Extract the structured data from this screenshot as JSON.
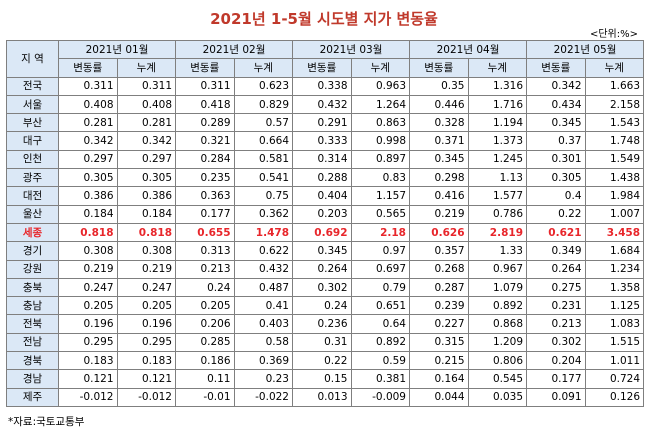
{
  "title": "2021년 1-5월 시도별 지가 변동율",
  "unit": "<단위:%>",
  "source": "*자료:국토교통부",
  "header": {
    "region_label": "지 역",
    "months": [
      "2021년 01월",
      "2021년 02월",
      "2021년 03월",
      "2021년 04월",
      "2021년 05월"
    ],
    "sub_labels": [
      "변동률",
      "누계"
    ]
  },
  "highlight_color": "#e8262b",
  "rows": [
    {
      "region": "전국",
      "values": [
        "0.311",
        "0.311",
        "0.311",
        "0.623",
        "0.338",
        "0.963",
        "0.35",
        "1.316",
        "0.342",
        "1.663"
      ]
    },
    {
      "region": "서울",
      "values": [
        "0.408",
        "0.408",
        "0.418",
        "0.829",
        "0.432",
        "1.264",
        "0.446",
        "1.716",
        "0.434",
        "2.158"
      ]
    },
    {
      "region": "부산",
      "values": [
        "0.281",
        "0.281",
        "0.289",
        "0.57",
        "0.291",
        "0.863",
        "0.328",
        "1.194",
        "0.345",
        "1.543"
      ]
    },
    {
      "region": "대구",
      "values": [
        "0.342",
        "0.342",
        "0.321",
        "0.664",
        "0.333",
        "0.998",
        "0.371",
        "1.373",
        "0.37",
        "1.748"
      ]
    },
    {
      "region": "인천",
      "values": [
        "0.297",
        "0.297",
        "0.284",
        "0.581",
        "0.314",
        "0.897",
        "0.345",
        "1.245",
        "0.301",
        "1.549"
      ]
    },
    {
      "region": "광주",
      "values": [
        "0.305",
        "0.305",
        "0.235",
        "0.541",
        "0.288",
        "0.83",
        "0.298",
        "1.13",
        "0.305",
        "1.438"
      ]
    },
    {
      "region": "대전",
      "values": [
        "0.386",
        "0.386",
        "0.363",
        "0.75",
        "0.404",
        "1.157",
        "0.416",
        "1.577",
        "0.4",
        "1.984"
      ]
    },
    {
      "region": "울산",
      "values": [
        "0.184",
        "0.184",
        "0.177",
        "0.362",
        "0.203",
        "0.565",
        "0.219",
        "0.786",
        "0.22",
        "1.007"
      ]
    },
    {
      "region": "세종",
      "highlight": true,
      "values": [
        "0.818",
        "0.818",
        "0.655",
        "1.478",
        "0.692",
        "2.18",
        "0.626",
        "2.819",
        "0.621",
        "3.458"
      ]
    },
    {
      "region": "경기",
      "values": [
        "0.308",
        "0.308",
        "0.313",
        "0.622",
        "0.345",
        "0.97",
        "0.357",
        "1.33",
        "0.349",
        "1.684"
      ]
    },
    {
      "region": "강원",
      "values": [
        "0.219",
        "0.219",
        "0.213",
        "0.432",
        "0.264",
        "0.697",
        "0.268",
        "0.967",
        "0.264",
        "1.234"
      ]
    },
    {
      "region": "충북",
      "values": [
        "0.247",
        "0.247",
        "0.24",
        "0.487",
        "0.302",
        "0.79",
        "0.287",
        "1.079",
        "0.275",
        "1.358"
      ]
    },
    {
      "region": "충남",
      "values": [
        "0.205",
        "0.205",
        "0.205",
        "0.41",
        "0.24",
        "0.651",
        "0.239",
        "0.892",
        "0.231",
        "1.125"
      ]
    },
    {
      "region": "전북",
      "values": [
        "0.196",
        "0.196",
        "0.206",
        "0.403",
        "0.236",
        "0.64",
        "0.227",
        "0.868",
        "0.213",
        "1.083"
      ]
    },
    {
      "region": "전남",
      "values": [
        "0.295",
        "0.295",
        "0.285",
        "0.58",
        "0.31",
        "0.892",
        "0.315",
        "1.209",
        "0.302",
        "1.515"
      ]
    },
    {
      "region": "경북",
      "values": [
        "0.183",
        "0.183",
        "0.186",
        "0.369",
        "0.22",
        "0.59",
        "0.215",
        "0.806",
        "0.204",
        "1.011"
      ]
    },
    {
      "region": "경남",
      "values": [
        "0.121",
        "0.121",
        "0.11",
        "0.23",
        "0.15",
        "0.381",
        "0.164",
        "0.545",
        "0.177",
        "0.724"
      ]
    },
    {
      "region": "제주",
      "values": [
        "-0.012",
        "-0.012",
        "-0.01",
        "-0.022",
        "0.013",
        "-0.009",
        "0.044",
        "0.035",
        "0.091",
        "0.126"
      ]
    }
  ]
}
